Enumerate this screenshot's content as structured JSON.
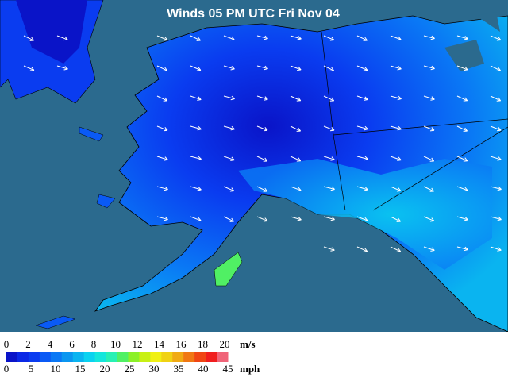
{
  "title": "Winds 05 PM UTC Fri Nov 04",
  "legend": {
    "ms_ticks": [
      0,
      2,
      4,
      6,
      8,
      10,
      12,
      14,
      16,
      18,
      20
    ],
    "ms_unit": "m/s",
    "mph_ticks": [
      0,
      5,
      10,
      15,
      20,
      25,
      30,
      35,
      40,
      45
    ],
    "mph_unit": "mph",
    "colors": [
      "#0a14c8",
      "#0a28e6",
      "#0a3cf0",
      "#0a5af5",
      "#0a78f5",
      "#0a96f0",
      "#0ab4f0",
      "#0ad2f0",
      "#14e6dc",
      "#28f0b4",
      "#50f064",
      "#8cf028",
      "#c8f014",
      "#f0f014",
      "#f0d214",
      "#f0aa14",
      "#f07814",
      "#f04614",
      "#f01e1e",
      "#f06478"
    ]
  }
}
